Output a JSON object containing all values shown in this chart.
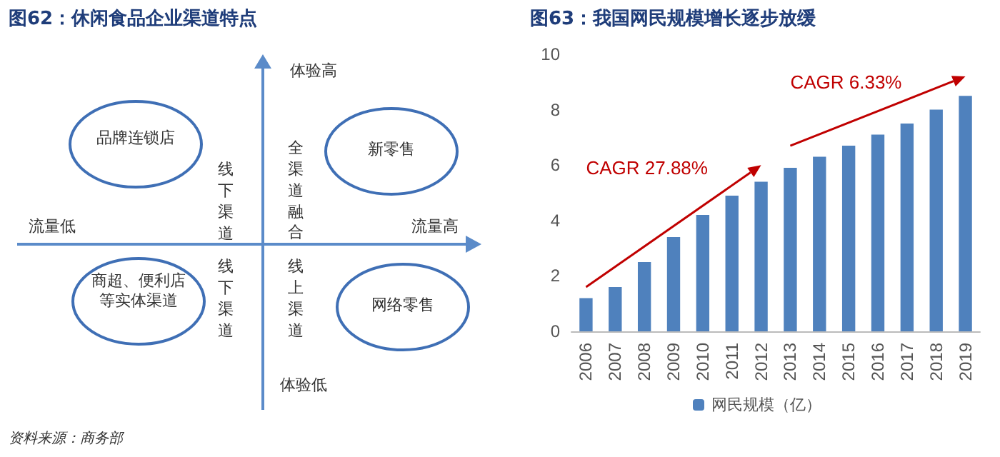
{
  "chart_data": [
    {
      "type": "other",
      "title": "图62：休闲食品企业渠道特点",
      "annotations": [
        "体验高",
        "体验低",
        "流量低",
        "流量高",
        "品牌连锁店",
        "新零售",
        "商超、便利店等实体渠道",
        "网络零售",
        "线下渠道",
        "全渠道融合",
        "线下渠道",
        "线上渠道",
        "资料来源：商务部"
      ]
    },
    {
      "type": "bar",
      "title": "图63：我国网民规模增长逐步放缓",
      "categories": [
        "2006",
        "2007",
        "2008",
        "2009",
        "2010",
        "2011",
        "2012",
        "2013",
        "2014",
        "2015",
        "2016",
        "2017",
        "2018",
        "2019"
      ],
      "series": [
        {
          "name": "网民规模（亿）",
          "color": "#4f81bd",
          "values": [
            1.2,
            1.6,
            2.5,
            3.4,
            4.2,
            4.9,
            5.4,
            5.9,
            6.3,
            6.7,
            7.1,
            7.5,
            8.0,
            8.5
          ]
        }
      ],
      "ylim": [
        0,
        10
      ],
      "yticks": [
        0,
        2,
        4,
        6,
        8,
        10
      ],
      "grid": false,
      "legend": "bottom",
      "annotations": [
        "CAGR 27.88%",
        "CAGR 6.33%"
      ]
    }
  ]
}
